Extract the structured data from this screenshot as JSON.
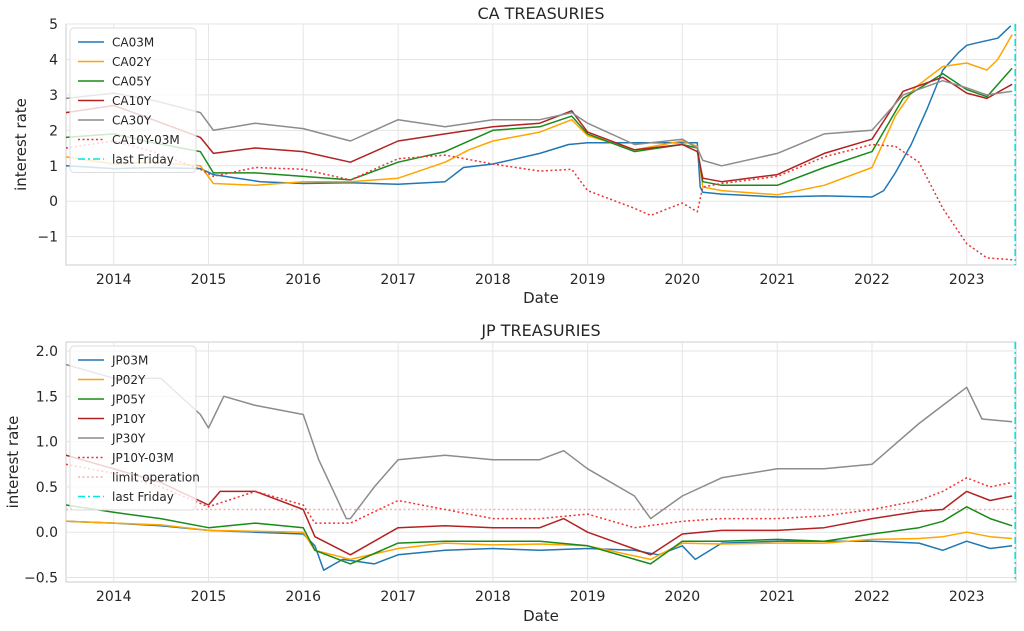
{
  "chart_data": [
    {
      "type": "line",
      "title": "CA TREASURIES",
      "xlabel": "Date",
      "ylabel": "interest rate",
      "xlim": [
        "2013-07-01",
        "2023-07-10"
      ],
      "ylim": [
        -1.8,
        5.0
      ],
      "yticks": [
        5,
        4,
        3,
        2,
        1,
        0,
        -1
      ],
      "ytick_labels": [
        "5",
        "4",
        "3",
        "2",
        "1",
        "0",
        "−1"
      ],
      "xticks": [
        "2014-01-01",
        "2015-01-01",
        "2016-01-01",
        "2017-01-01",
        "2018-01-01",
        "2019-01-01",
        "2020-01-01",
        "2021-01-01",
        "2022-01-01",
        "2023-01-01"
      ],
      "xtick_labels": [
        "2014",
        "2015",
        "2016",
        "2017",
        "2018",
        "2019",
        "2020",
        "2021",
        "2022",
        "2023"
      ],
      "grid": true,
      "legend_position": "upper-left",
      "series": [
        {
          "name": "CA03M",
          "color": "#1f77b4",
          "style": "solid",
          "x": [
            "2013-07-01",
            "2014-01-01",
            "2014-06-01",
            "2014-12-01",
            "2015-01-20",
            "2015-07-20",
            "2016-01-01",
            "2016-07-01",
            "2017-01-01",
            "2017-07-01",
            "2017-09-10",
            "2018-01-01",
            "2018-07-01",
            "2018-10-20",
            "2019-01-01",
            "2019-07-01",
            "2020-01-01",
            "2020-02-28",
            "2020-03-10",
            "2020-03-20",
            "2020-06-01",
            "2021-01-01",
            "2021-07-01",
            "2022-01-01",
            "2022-02-15",
            "2022-04-01",
            "2022-06-01",
            "2022-08-01",
            "2022-10-01",
            "2022-12-01",
            "2023-01-01",
            "2023-03-01",
            "2023-05-01",
            "2023-06-20"
          ],
          "y": [
            1.0,
            0.92,
            0.95,
            0.92,
            0.75,
            0.55,
            0.5,
            0.52,
            0.48,
            0.55,
            0.95,
            1.05,
            1.35,
            1.6,
            1.65,
            1.65,
            1.65,
            1.65,
            0.4,
            0.25,
            0.2,
            0.12,
            0.15,
            0.12,
            0.3,
            0.8,
            1.6,
            2.6,
            3.7,
            4.2,
            4.4,
            4.5,
            4.6,
            4.95
          ]
        },
        {
          "name": "CA02Y",
          "color": "#ffa500",
          "style": "solid",
          "x": [
            "2013-07-01",
            "2014-01-01",
            "2014-06-01",
            "2014-12-01",
            "2015-01-20",
            "2015-07-01",
            "2016-01-01",
            "2016-07-01",
            "2017-01-01",
            "2017-07-01",
            "2017-10-01",
            "2018-01-01",
            "2018-07-01",
            "2018-11-01",
            "2019-01-01",
            "2019-07-01",
            "2020-01-01",
            "2020-02-28",
            "2020-03-20",
            "2020-06-01",
            "2021-01-01",
            "2021-07-01",
            "2022-01-01",
            "2022-04-01",
            "2022-06-15",
            "2022-10-01",
            "2023-01-01",
            "2023-03-20",
            "2023-05-01",
            "2023-06-25"
          ],
          "y": [
            1.25,
            1.05,
            1.1,
            1.0,
            0.5,
            0.45,
            0.55,
            0.55,
            0.65,
            1.1,
            1.45,
            1.7,
            1.95,
            2.3,
            1.85,
            1.45,
            1.7,
            1.55,
            0.4,
            0.3,
            0.18,
            0.45,
            0.95,
            2.4,
            3.2,
            3.8,
            3.9,
            3.7,
            4.0,
            4.7
          ]
        },
        {
          "name": "CA05Y",
          "color": "#1a8a1a",
          "style": "solid",
          "x": [
            "2013-07-01",
            "2014-01-01",
            "2014-06-01",
            "2014-12-01",
            "2015-01-20",
            "2015-07-01",
            "2016-01-01",
            "2016-07-01",
            "2017-01-01",
            "2017-07-01",
            "2018-01-01",
            "2018-07-01",
            "2018-11-01",
            "2019-01-01",
            "2019-07-01",
            "2020-01-01",
            "2020-02-28",
            "2020-03-20",
            "2020-06-01",
            "2021-01-01",
            "2021-07-01",
            "2022-01-01",
            "2022-05-01",
            "2022-10-01",
            "2023-01-01",
            "2023-03-20",
            "2023-06-25"
          ],
          "y": [
            1.8,
            1.9,
            1.65,
            1.4,
            0.8,
            0.8,
            0.7,
            0.6,
            1.1,
            1.4,
            2.0,
            2.1,
            2.4,
            1.9,
            1.4,
            1.6,
            1.5,
            0.55,
            0.45,
            0.45,
            0.95,
            1.4,
            2.9,
            3.6,
            3.15,
            2.95,
            3.75
          ]
        },
        {
          "name": "CA10Y",
          "color": "#b22222",
          "style": "solid",
          "x": [
            "2013-07-01",
            "2014-01-01",
            "2014-06-01",
            "2014-12-01",
            "2015-01-20",
            "2015-07-01",
            "2016-01-01",
            "2016-07-01",
            "2017-01-01",
            "2017-07-01",
            "2018-01-01",
            "2018-07-01",
            "2018-11-01",
            "2019-01-01",
            "2019-07-01",
            "2020-01-01",
            "2020-02-28",
            "2020-03-20",
            "2020-06-01",
            "2021-01-01",
            "2021-07-01",
            "2022-01-01",
            "2022-05-01",
            "2022-10-01",
            "2023-01-01",
            "2023-03-20",
            "2023-06-25"
          ],
          "y": [
            2.5,
            2.7,
            2.3,
            1.8,
            1.35,
            1.5,
            1.4,
            1.1,
            1.7,
            1.9,
            2.1,
            2.2,
            2.55,
            1.95,
            1.45,
            1.6,
            1.4,
            0.65,
            0.55,
            0.75,
            1.35,
            1.75,
            3.1,
            3.5,
            3.05,
            2.9,
            3.3
          ]
        },
        {
          "name": "CA30Y",
          "color": "#8c8c8c",
          "style": "solid",
          "x": [
            "2013-07-01",
            "2014-01-01",
            "2014-06-01",
            "2014-12-01",
            "2015-01-20",
            "2015-07-01",
            "2016-01-01",
            "2016-07-01",
            "2017-01-01",
            "2017-07-01",
            "2018-01-01",
            "2018-07-01",
            "2018-11-01",
            "2019-01-01",
            "2019-07-01",
            "2020-01-01",
            "2020-02-28",
            "2020-03-20",
            "2020-06-01",
            "2021-01-01",
            "2021-07-01",
            "2022-01-01",
            "2022-05-01",
            "2022-10-01",
            "2023-01-01",
            "2023-03-20",
            "2023-06-25"
          ],
          "y": [
            2.9,
            3.05,
            2.85,
            2.5,
            2.0,
            2.2,
            2.05,
            1.7,
            2.3,
            2.1,
            2.3,
            2.3,
            2.5,
            2.2,
            1.6,
            1.75,
            1.5,
            1.15,
            1.0,
            1.35,
            1.9,
            2.0,
            3.0,
            3.4,
            3.2,
            3.0,
            3.1
          ]
        },
        {
          "name": "CA10Y-03M",
          "color": "#ee3333",
          "style": "dotted",
          "x": [
            "2013-07-01",
            "2014-01-01",
            "2014-06-01",
            "2014-12-01",
            "2015-01-20",
            "2015-07-01",
            "2016-01-01",
            "2016-07-01",
            "2017-01-01",
            "2017-07-01",
            "2018-01-01",
            "2018-07-01",
            "2018-11-01",
            "2019-01-01",
            "2019-07-01",
            "2019-09-01",
            "2020-01-01",
            "2020-02-28",
            "2020-03-20",
            "2020-06-01",
            "2021-01-01",
            "2021-07-01",
            "2022-01-01",
            "2022-04-01",
            "2022-07-01",
            "2022-10-01",
            "2023-01-01",
            "2023-03-20",
            "2023-06-25"
          ],
          "y": [
            1.5,
            1.7,
            1.4,
            0.9,
            0.7,
            0.95,
            0.9,
            0.6,
            1.2,
            1.3,
            1.05,
            0.85,
            0.9,
            0.3,
            -0.2,
            -0.4,
            -0.05,
            -0.3,
            0.4,
            0.5,
            0.7,
            1.25,
            1.6,
            1.55,
            1.1,
            -0.2,
            -1.2,
            -1.6,
            -1.65
          ]
        }
      ],
      "vlines": [
        {
          "name": "last Friday",
          "x": "2023-07-07",
          "color": "#00e5e5",
          "style": "dashdot"
        }
      ]
    },
    {
      "type": "line",
      "title": "JP TREASURIES",
      "xlabel": "Date",
      "ylabel": "interest rate",
      "xlim": [
        "2013-07-01",
        "2023-07-10"
      ],
      "ylim": [
        -0.55,
        2.1
      ],
      "yticks": [
        2.0,
        1.5,
        1.0,
        0.5,
        0.0,
        -0.5
      ],
      "ytick_labels": [
        "2.0",
        "1.5",
        "1.0",
        "0.5",
        "0.0",
        "−0.5"
      ],
      "xticks": [
        "2014-01-01",
        "2015-01-01",
        "2016-01-01",
        "2017-01-01",
        "2018-01-01",
        "2019-01-01",
        "2020-01-01",
        "2021-01-01",
        "2022-01-01",
        "2023-01-01"
      ],
      "xtick_labels": [
        "2014",
        "2015",
        "2016",
        "2017",
        "2018",
        "2019",
        "2020",
        "2021",
        "2022",
        "2023"
      ],
      "grid": true,
      "legend_position": "upper-left",
      "series": [
        {
          "name": "JP03M",
          "color": "#1f77b4",
          "style": "solid",
          "x": [
            "2013-07-01",
            "2014-01-01",
            "2014-07-01",
            "2015-01-01",
            "2015-07-01",
            "2016-01-01",
            "2016-02-15",
            "2016-03-20",
            "2016-06-01",
            "2016-10-01",
            "2017-01-01",
            "2017-07-01",
            "2018-01-01",
            "2018-07-01",
            "2019-01-01",
            "2019-07-01",
            "2019-10-01",
            "2020-01-01",
            "2020-02-20",
            "2020-06-01",
            "2021-01-01",
            "2021-07-01",
            "2022-01-01",
            "2022-07-01",
            "2022-10-01",
            "2023-01-01",
            "2023-04-01",
            "2023-06-25"
          ],
          "y": [
            0.12,
            0.1,
            0.07,
            0.02,
            0.0,
            -0.02,
            -0.15,
            -0.42,
            -0.3,
            -0.35,
            -0.25,
            -0.2,
            -0.18,
            -0.2,
            -0.18,
            -0.2,
            -0.25,
            -0.15,
            -0.3,
            -0.12,
            -0.1,
            -0.1,
            -0.1,
            -0.12,
            -0.2,
            -0.1,
            -0.18,
            -0.15
          ]
        },
        {
          "name": "JP02Y",
          "color": "#ffa500",
          "style": "solid",
          "x": [
            "2013-07-01",
            "2014-01-01",
            "2014-07-01",
            "2015-01-01",
            "2015-07-01",
            "2016-01-01",
            "2016-02-15",
            "2016-07-01",
            "2017-01-01",
            "2017-07-01",
            "2018-01-01",
            "2018-07-01",
            "2019-01-01",
            "2019-09-01",
            "2020-01-01",
            "2020-06-01",
            "2021-01-01",
            "2021-07-01",
            "2022-01-01",
            "2022-07-01",
            "2022-10-01",
            "2023-01-01",
            "2023-04-01",
            "2023-06-25"
          ],
          "y": [
            0.12,
            0.1,
            0.08,
            0.02,
            0.01,
            0.0,
            -0.2,
            -0.3,
            -0.18,
            -0.12,
            -0.14,
            -0.13,
            -0.15,
            -0.3,
            -0.12,
            -0.13,
            -0.12,
            -0.12,
            -0.08,
            -0.07,
            -0.05,
            0.0,
            -0.05,
            -0.07
          ]
        },
        {
          "name": "JP05Y",
          "color": "#1a8a1a",
          "style": "solid",
          "x": [
            "2013-07-01",
            "2014-01-01",
            "2014-07-01",
            "2015-01-01",
            "2015-07-01",
            "2016-01-01",
            "2016-02-15",
            "2016-07-01",
            "2017-01-01",
            "2017-07-01",
            "2018-01-01",
            "2018-07-01",
            "2019-01-01",
            "2019-09-01",
            "2020-01-01",
            "2020-06-01",
            "2021-01-01",
            "2021-07-01",
            "2022-01-01",
            "2022-07-01",
            "2022-10-01",
            "2023-01-01",
            "2023-04-01",
            "2023-06-25"
          ],
          "y": [
            0.3,
            0.22,
            0.15,
            0.05,
            0.1,
            0.05,
            -0.2,
            -0.35,
            -0.12,
            -0.1,
            -0.1,
            -0.1,
            -0.15,
            -0.35,
            -0.1,
            -0.1,
            -0.08,
            -0.1,
            -0.02,
            0.05,
            0.12,
            0.28,
            0.15,
            0.07
          ]
        },
        {
          "name": "JP10Y",
          "color": "#b22222",
          "style": "solid",
          "x": [
            "2013-07-01",
            "2014-01-01",
            "2014-07-01",
            "2015-01-01",
            "2015-02-15",
            "2015-07-01",
            "2016-01-01",
            "2016-02-15",
            "2016-07-01",
            "2017-01-01",
            "2017-07-01",
            "2018-01-01",
            "2018-07-01",
            "2018-10-01",
            "2019-01-01",
            "2019-09-01",
            "2020-01-01",
            "2020-06-01",
            "2021-01-01",
            "2021-07-01",
            "2022-01-01",
            "2022-07-01",
            "2022-10-01",
            "2023-01-01",
            "2023-04-01",
            "2023-06-25"
          ],
          "y": [
            0.85,
            0.7,
            0.55,
            0.3,
            0.45,
            0.45,
            0.25,
            -0.05,
            -0.25,
            0.05,
            0.07,
            0.05,
            0.05,
            0.15,
            0.0,
            -0.25,
            -0.02,
            0.02,
            0.02,
            0.05,
            0.15,
            0.23,
            0.25,
            0.45,
            0.35,
            0.4
          ]
        },
        {
          "name": "JP30Y",
          "color": "#8c8c8c",
          "style": "solid",
          "x": [
            "2013-07-01",
            "2014-01-01",
            "2014-07-01",
            "2014-12-01",
            "2015-01-01",
            "2015-03-01",
            "2015-07-01",
            "2016-01-01",
            "2016-03-01",
            "2016-06-15",
            "2016-07-01",
            "2016-10-01",
            "2017-01-01",
            "2017-07-01",
            "2018-01-01",
            "2018-07-01",
            "2018-10-01",
            "2019-01-01",
            "2019-07-01",
            "2019-09-01",
            "2020-01-01",
            "2020-06-01",
            "2021-01-01",
            "2021-07-01",
            "2022-01-01",
            "2022-07-01",
            "2022-10-01",
            "2023-01-01",
            "2023-03-01",
            "2023-06-25"
          ],
          "y": [
            1.85,
            1.7,
            1.7,
            1.3,
            1.15,
            1.5,
            1.4,
            1.3,
            0.8,
            0.15,
            0.15,
            0.5,
            0.8,
            0.85,
            0.8,
            0.8,
            0.9,
            0.7,
            0.4,
            0.15,
            0.4,
            0.6,
            0.7,
            0.7,
            0.75,
            1.2,
            1.4,
            1.6,
            1.25,
            1.22
          ]
        },
        {
          "name": "JP10Y-03M",
          "color": "#ee3333",
          "style": "dotted",
          "x": [
            "2013-07-01",
            "2014-01-01",
            "2014-07-01",
            "2015-01-01",
            "2015-07-01",
            "2016-01-01",
            "2016-02-15",
            "2016-07-01",
            "2017-01-01",
            "2017-07-01",
            "2018-01-01",
            "2018-07-01",
            "2019-01-01",
            "2019-07-01",
            "2020-01-01",
            "2020-06-01",
            "2021-01-01",
            "2021-07-01",
            "2022-01-01",
            "2022-07-01",
            "2022-10-01",
            "2023-01-01",
            "2023-04-01",
            "2023-06-25"
          ],
          "y": [
            0.75,
            0.65,
            0.5,
            0.28,
            0.45,
            0.3,
            0.1,
            0.1,
            0.35,
            0.25,
            0.15,
            0.15,
            0.2,
            0.05,
            0.12,
            0.15,
            0.15,
            0.18,
            0.25,
            0.35,
            0.45,
            0.6,
            0.5,
            0.55
          ]
        }
      ],
      "hlines": [
        {
          "name": "limit operation",
          "y": 0.25,
          "color": "#f4b0b0",
          "style": "dotted"
        }
      ],
      "vlines": [
        {
          "name": "last Friday",
          "x": "2023-07-07",
          "color": "#00e5e5",
          "style": "dashdot"
        }
      ]
    }
  ]
}
